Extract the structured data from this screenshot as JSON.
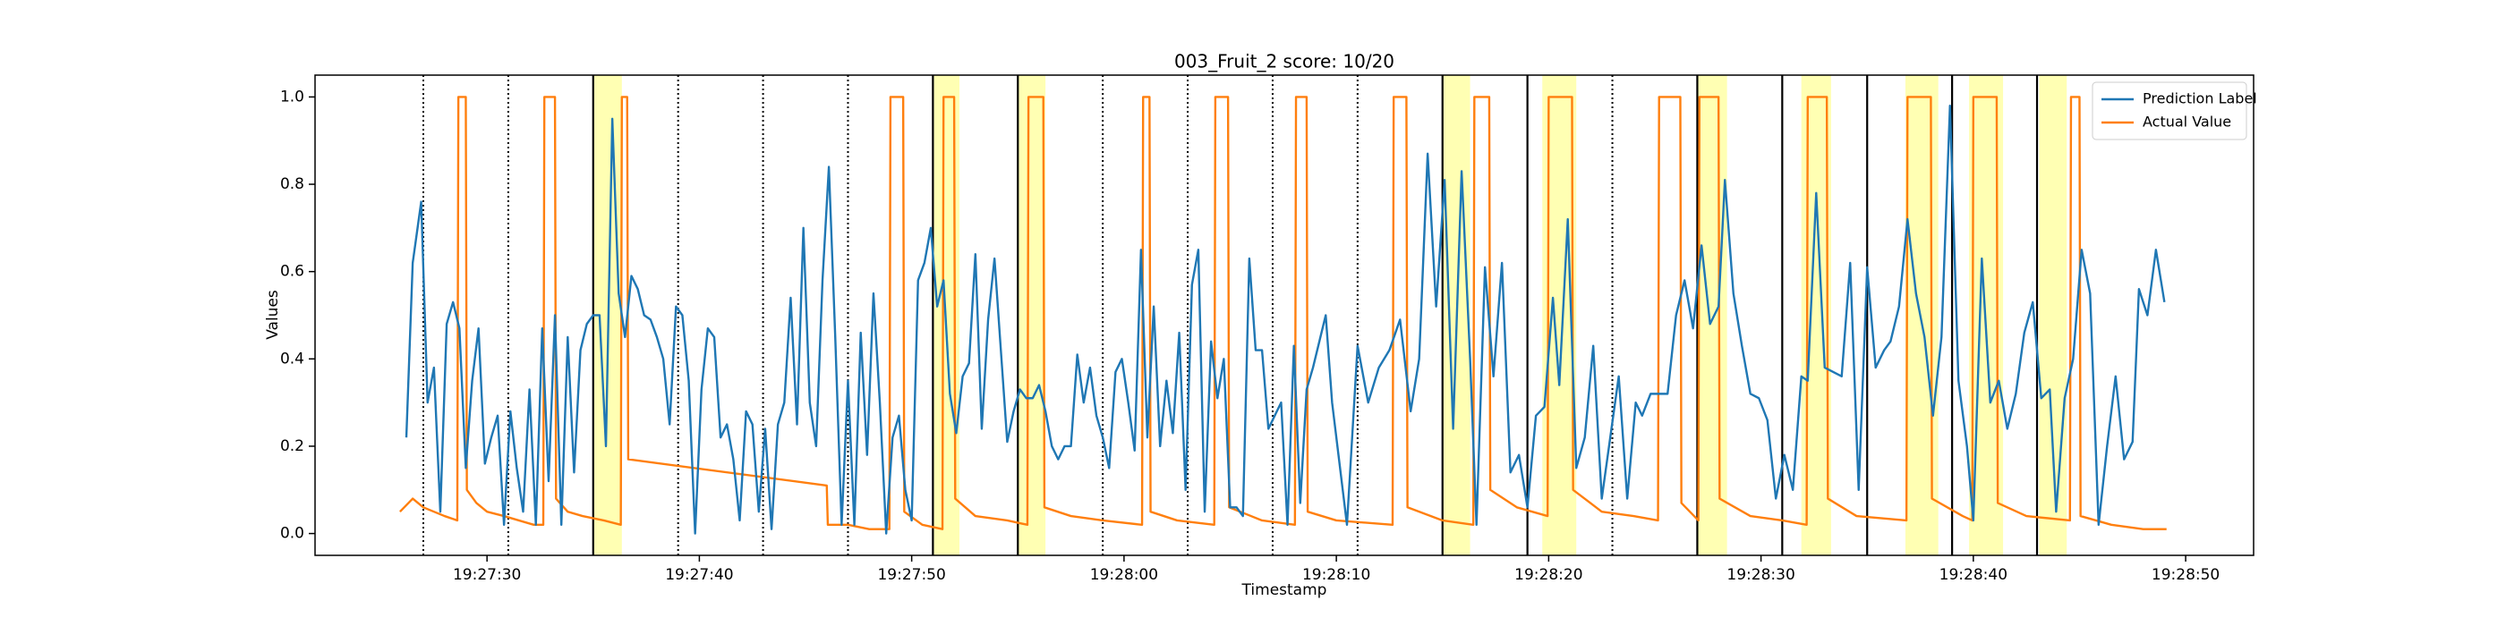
{
  "chart_data": {
    "type": "line",
    "title": "003_Fruit_2 score: 10/20",
    "x_label": "Timestamp",
    "y_label": "Values",
    "xlim": [
      "19:27:21.9",
      "19:28:53.2"
    ],
    "xticks": [
      "19:27:30",
      "19:27:40",
      "19:27:50",
      "19:28:00",
      "19:28:10",
      "19:28:20",
      "19:28:30",
      "19:28:40",
      "19:28:50"
    ],
    "ylim": [
      -0.05,
      1.05
    ],
    "yticks": [
      {
        "value": 0,
        "label": "0.0"
      },
      {
        "value": 0.2,
        "label": "0.2"
      },
      {
        "value": 0.4,
        "label": "0.4"
      },
      {
        "value": 0.6,
        "label": "0.6"
      },
      {
        "value": 0.8,
        "label": "0.8"
      },
      {
        "value": 1,
        "label": "1.0"
      }
    ],
    "legend": "upper right",
    "vline_color": "#000000",
    "span_color": "#ffff99",
    "vlines": [
      {
        "x": "19:27:27.0",
        "style": "dotted"
      },
      {
        "x": "19:27:31.0",
        "style": "dotted"
      },
      {
        "x": "19:27:35.0",
        "style": "solid"
      },
      {
        "x": "19:27:39.0",
        "style": "dotted"
      },
      {
        "x": "19:27:43.0",
        "style": "dotted"
      },
      {
        "x": "19:27:47.0",
        "style": "dotted"
      },
      {
        "x": "19:27:51.0",
        "style": "solid"
      },
      {
        "x": "19:27:55.0",
        "style": "solid"
      },
      {
        "x": "19:27:59.0",
        "style": "dotted"
      },
      {
        "x": "19:28:03.0",
        "style": "dotted"
      },
      {
        "x": "19:28:07.0",
        "style": "dotted"
      },
      {
        "x": "19:28:11.0",
        "style": "dotted"
      },
      {
        "x": "19:28:15.0",
        "style": "solid"
      },
      {
        "x": "19:28:19.0",
        "style": "solid"
      },
      {
        "x": "19:28:23.0",
        "style": "dotted"
      },
      {
        "x": "19:28:27.0",
        "style": "solid"
      },
      {
        "x": "19:28:31.0",
        "style": "solid"
      },
      {
        "x": "19:28:35.0",
        "style": "solid"
      },
      {
        "x": "19:28:39.0",
        "style": "solid"
      },
      {
        "x": "19:28:43.0",
        "style": "solid"
      }
    ],
    "spans": [
      {
        "x": [
          "19:27:35.0",
          "19:27:36.35"
        ]
      },
      {
        "x": [
          "19:27:51.05",
          "19:27:52.25"
        ]
      },
      {
        "x": [
          "19:27:55.0",
          "19:27:56.3"
        ]
      },
      {
        "x": [
          "19:28:15.0",
          "19:28:16.3"
        ]
      },
      {
        "x": [
          "19:28:19.7",
          "19:28:21.3"
        ]
      },
      {
        "x": [
          "19:28:27.0",
          "19:28:28.4"
        ]
      },
      {
        "x": [
          "19:28:31.9",
          "19:28:33.3"
        ]
      },
      {
        "x": [
          "19:28:36.8",
          "19:28:38.35"
        ]
      },
      {
        "x": [
          "19:28:39.8",
          "19:28:41.4"
        ]
      },
      {
        "x": [
          "19:28:43.1",
          "19:28:44.4"
        ]
      }
    ],
    "series": [
      {
        "name": "Prediction Label",
        "color": "#1f77b4",
        "x": [
          "19:27:26.2",
          "19:27:26.5",
          "19:27:26.9",
          "19:27:27.2",
          "19:27:27.5",
          "19:27:27.8",
          "19:27:28.1",
          "19:27:28.4",
          "19:27:28.7",
          "19:27:29.0",
          "19:27:29.3",
          "19:27:29.6",
          "19:27:29.9",
          "19:27:30.2",
          "19:27:30.5",
          "19:27:30.8",
          "19:27:31.1",
          "19:27:31.4",
          "19:27:31.7",
          "19:27:32.0",
          "19:27:32.3",
          "19:27:32.6",
          "19:27:32.9",
          "19:27:33.2",
          "19:27:33.5",
          "19:27:33.8",
          "19:27:34.1",
          "19:27:34.4",
          "19:27:34.7",
          "19:27:35.0",
          "19:27:35.3",
          "19:27:35.6",
          "19:27:35.9",
          "19:27:36.2",
          "19:27:36.5",
          "19:27:36.8",
          "19:27:37.1",
          "19:27:37.4",
          "19:27:37.7",
          "19:27:38.0",
          "19:27:38.3",
          "19:27:38.6",
          "19:27:38.9",
          "19:27:39.2",
          "19:27:39.5",
          "19:27:39.8",
          "19:27:40.1",
          "19:27:40.4",
          "19:27:40.7",
          "19:27:41.0",
          "19:27:41.3",
          "19:27:41.6",
          "19:27:41.9",
          "19:27:42.2",
          "19:27:42.5",
          "19:27:42.8",
          "19:27:43.1",
          "19:27:43.4",
          "19:27:43.7",
          "19:27:44.0",
          "19:27:44.3",
          "19:27:44.6",
          "19:27:44.9",
          "19:27:45.2",
          "19:27:45.5",
          "19:27:45.8",
          "19:27:46.1",
          "19:27:46.4",
          "19:27:46.7",
          "19:27:47.0",
          "19:27:47.3",
          "19:27:47.6",
          "19:27:47.9",
          "19:27:48.2",
          "19:27:48.5",
          "19:27:48.8",
          "19:27:49.1",
          "19:27:49.4",
          "19:27:49.7",
          "19:27:50.0",
          "19:27:50.3",
          "19:27:50.6",
          "19:27:50.9",
          "19:27:51.2",
          "19:27:51.5",
          "19:27:51.8",
          "19:27:52.1",
          "19:27:52.4",
          "19:27:52.7",
          "19:27:53.0",
          "19:27:53.3",
          "19:27:53.6",
          "19:27:53.9",
          "19:27:54.2",
          "19:27:54.5",
          "19:27:54.8",
          "19:27:55.1",
          "19:27:55.4",
          "19:27:55.7",
          "19:27:56.0",
          "19:27:56.3",
          "19:27:56.6",
          "19:27:56.9",
          "19:27:57.2",
          "19:27:57.5",
          "19:27:57.8",
          "19:27:58.1",
          "19:27:58.4",
          "19:27:58.7",
          "19:27:59.0",
          "19:27:59.3",
          "19:27:59.6",
          "19:27:59.9",
          "19:28:00.2",
          "19:28:00.5",
          "19:28:00.8",
          "19:28:01.1",
          "19:28:01.4",
          "19:28:01.7",
          "19:28:02.0",
          "19:28:02.3",
          "19:28:02.6",
          "19:28:02.9",
          "19:28:03.2",
          "19:28:03.5",
          "19:28:03.8",
          "19:28:04.1",
          "19:28:04.4",
          "19:28:04.7",
          "19:28:05.0",
          "19:28:05.3",
          "19:28:05.6",
          "19:28:05.9",
          "19:28:06.2",
          "19:28:06.5",
          "19:28:06.8",
          "19:28:07.1",
          "19:28:07.4",
          "19:28:07.7",
          "19:28:08.0",
          "19:28:08.3",
          "19:28:08.6",
          "19:28:08.9",
          "19:28:09.2",
          "19:28:09.5",
          "19:28:09.8",
          "19:28:10.5",
          "19:28:11.0",
          "19:28:11.5",
          "19:28:12.0",
          "19:28:12.5",
          "19:28:13.0",
          "19:28:13.5",
          "19:28:13.9",
          "19:28:14.3",
          "19:28:14.7",
          "19:28:15.1",
          "19:28:15.5",
          "19:28:15.9",
          "19:28:16.3",
          "19:28:16.6",
          "19:28:17.0",
          "19:28:17.4",
          "19:28:17.8",
          "19:28:18.2",
          "19:28:18.6",
          "19:28:19.0",
          "19:28:19.4",
          "19:28:19.8",
          "19:28:20.2",
          "19:28:20.5",
          "19:28:20.9",
          "19:28:21.3",
          "19:28:21.7",
          "19:28:22.1",
          "19:28:22.5",
          "19:28:22.9",
          "19:28:23.3",
          "19:28:23.7",
          "19:28:24.1",
          "19:28:24.4",
          "19:28:24.8",
          "19:28:25.2",
          "19:28:25.6",
          "19:28:26.0",
          "19:28:26.4",
          "19:28:26.8",
          "19:28:27.2",
          "19:28:27.6",
          "19:28:28.0",
          "19:28:28.3",
          "19:28:28.7",
          "19:28:29.1",
          "19:28:29.5",
          "19:28:29.9",
          "19:28:30.3",
          "19:28:30.7",
          "19:28:31.1",
          "19:28:31.5",
          "19:28:31.9",
          "19:28:32.2",
          "19:28:32.6",
          "19:28:33.0",
          "19:28:33.4",
          "19:28:33.8",
          "19:28:34.2",
          "19:28:34.6",
          "19:28:35.0",
          "19:28:35.4",
          "19:28:35.8",
          "19:28:36.1",
          "19:28:36.5",
          "19:28:36.9",
          "19:28:37.3",
          "19:28:37.7",
          "19:28:38.1",
          "19:28:38.5",
          "19:28:38.9",
          "19:28:39.3",
          "19:28:39.7",
          "19:28:40.0",
          "19:28:40.4",
          "19:28:40.8",
          "19:28:41.2",
          "19:28:41.6",
          "19:28:42.0",
          "19:28:42.4",
          "19:28:42.8",
          "19:28:43.2",
          "19:28:43.6",
          "19:28:43.9",
          "19:28:44.3",
          "19:28:44.7",
          "19:28:45.1",
          "19:28:45.5",
          "19:28:45.9",
          "19:28:46.3",
          "19:28:46.7",
          "19:28:47.1",
          "19:28:47.5",
          "19:28:47.8",
          "19:28:48.2",
          "19:28:48.6",
          "19:28:49.0"
        ],
        "values": [
          0.22,
          0.62,
          0.76,
          0.3,
          0.38,
          0.05,
          0.48,
          0.53,
          0.47,
          0.15,
          0.35,
          0.47,
          0.16,
          0.22,
          0.27,
          0.02,
          0.28,
          0.15,
          0.05,
          0.33,
          0.02,
          0.47,
          0.12,
          0.5,
          0.02,
          0.45,
          0.14,
          0.42,
          0.48,
          0.5,
          0.5,
          0.2,
          0.95,
          0.55,
          0.45,
          0.59,
          0.56,
          0.5,
          0.49,
          0.45,
          0.4,
          0.25,
          0.52,
          0.5,
          0.35,
          0,
          0.33,
          0.47,
          0.45,
          0.22,
          0.25,
          0.17,
          0.03,
          0.28,
          0.25,
          0.05,
          0.24,
          0.01,
          0.25,
          0.3,
          0.54,
          0.25,
          0.7,
          0.3,
          0.2,
          0.58,
          0.84,
          0.45,
          0.02,
          0.35,
          0.02,
          0.46,
          0.18,
          0.55,
          0.3,
          0,
          0.22,
          0.27,
          0.1,
          0.03,
          0.58,
          0.62,
          0.7,
          0.52,
          0.58,
          0.32,
          0.23,
          0.36,
          0.39,
          0.64,
          0.24,
          0.49,
          0.63,
          0.42,
          0.21,
          0.28,
          0.33,
          0.31,
          0.31,
          0.34,
          0.28,
          0.2,
          0.17,
          0.2,
          0.2,
          0.41,
          0.3,
          0.38,
          0.27,
          0.22,
          0.15,
          0.37,
          0.4,
          0.3,
          0.19,
          0.65,
          0.22,
          0.52,
          0.2,
          0.35,
          0.23,
          0.46,
          0.1,
          0.57,
          0.65,
          0.05,
          0.44,
          0.31,
          0.4,
          0.06,
          0.06,
          0.04,
          0.63,
          0.42,
          0.42,
          0.24,
          0.27,
          0.3,
          0.02,
          0.43,
          0.07,
          0.33,
          0.38,
          0.44,
          0.5,
          0.3,
          0.02,
          0.43,
          0.3,
          0.38,
          0.42,
          0.49,
          0.28,
          0.4,
          0.87,
          0.52,
          0.81,
          0.24,
          0.83,
          0.4,
          0.02,
          0.61,
          0.36,
          0.62,
          0.14,
          0.18,
          0.06,
          0.27,
          0.29,
          0.54,
          0.34,
          0.72,
          0.15,
          0.22,
          0.43,
          0.08,
          0.22,
          0.36,
          0.08,
          0.3,
          0.27,
          0.32,
          0.32,
          0.32,
          0.5,
          0.58,
          0.47,
          0.66,
          0.48,
          0.52,
          0.81,
          0.55,
          0.43,
          0.32,
          0.31,
          0.26,
          0.08,
          0.18,
          0.1,
          0.36,
          0.35,
          0.78,
          0.38,
          0.37,
          0.36,
          0.62,
          0.1,
          0.61,
          0.38,
          0.42,
          0.44,
          0.52,
          0.72,
          0.55,
          0.45,
          0.27,
          0.45,
          0.98,
          0.35,
          0.2,
          0.03,
          0.63,
          0.3,
          0.35,
          0.24,
          0.32,
          0.46,
          0.53,
          0.31,
          0.33,
          0.05,
          0.31,
          0.4,
          0.65,
          0.55,
          0.02,
          0.2,
          0.36,
          0.17,
          0.21,
          0.56,
          0.5,
          0.65,
          0.53
        ]
      },
      {
        "name": "Actual Value",
        "color": "#ff7f0e",
        "x": [
          "19:27:25.9",
          "19:27:26.5",
          "19:27:27.0",
          "19:27:27.5",
          "19:27:28.0",
          "19:27:28.6",
          "19:27:28.65",
          "19:27:29.0",
          "19:27:29.05",
          "19:27:29.5",
          "19:27:30.0",
          "19:27:30.8",
          "19:27:31.5",
          "19:27:32.2",
          "19:27:32.65",
          "19:27:32.7",
          "19:27:33.2",
          "19:27:33.25",
          "19:27:33.8",
          "19:27:34.5",
          "19:27:35.5",
          "19:27:36.3",
          "19:27:36.35",
          "19:27:36.6",
          "19:27:36.65",
          "19:27:46.0",
          "19:27:46.05",
          "19:27:47.0",
          "19:27:48.0",
          "19:27:48.95",
          "19:27:49.0",
          "19:27:49.6",
          "19:27:49.65",
          "19:27:50.5",
          "19:27:51.45",
          "19:27:51.5",
          "19:27:52.0",
          "19:27:52.05",
          "19:27:53.0",
          "19:27:54.5",
          "19:27:55.45",
          "19:27:55.5",
          "19:27:56.2",
          "19:27:56.25",
          "19:27:57.5",
          "19:27:59.0",
          "19:28:00.85",
          "19:28:00.9",
          "19:28:01.2",
          "19:28:01.25",
          "19:28:02.5",
          "19:28:04.25",
          "19:28:04.3",
          "19:28:04.9",
          "19:28:04.95",
          "19:28:06.5",
          "19:28:08.05",
          "19:28:08.1",
          "19:28:08.6",
          "19:28:08.65",
          "19:28:10.0",
          "19:28:12.65",
          "19:28:12.7",
          "19:28:13.3",
          "19:28:13.35",
          "19:28:15.0",
          "19:28:16.45",
          "19:28:16.5",
          "19:28:17.2",
          "19:28:17.25",
          "19:28:18.5",
          "19:28:19.95",
          "19:28:20.0",
          "19:28:21.1",
          "19:28:21.15",
          "19:28:22.5",
          "19:28:24.0",
          "19:28:25.15",
          "19:28:25.2",
          "19:28:26.2",
          "19:28:26.25",
          "19:28:27.05",
          "19:28:27.1",
          "19:28:28.0",
          "19:28:28.05",
          "19:28:29.5",
          "19:28:31.0",
          "19:28:32.15",
          "19:28:32.2",
          "19:28:33.1",
          "19:28:33.15",
          "19:28:34.5",
          "19:28:36.85",
          "19:28:36.9",
          "19:28:38.0",
          "19:28:38.05",
          "19:28:39.5",
          "19:28:39.95",
          "19:28:40.0",
          "19:28:41.1",
          "19:28:41.15",
          "19:28:42.5",
          "19:28:44.55",
          "19:28:44.6",
          "19:28:45.0",
          "19:28:45.05",
          "19:28:46.5",
          "19:28:48.0",
          "19:28:49.1"
        ],
        "values": [
          0.05,
          0.08,
          0.06,
          0.05,
          0.04,
          0.03,
          1,
          1,
          0.1,
          0.07,
          0.05,
          0.04,
          0.03,
          0.02,
          0.02,
          1,
          1,
          0.08,
          0.05,
          0.04,
          0.03,
          0.02,
          1,
          1,
          0.17,
          0.11,
          0.02,
          0.02,
          0.01,
          0.01,
          1,
          1,
          0.05,
          0.02,
          0.01,
          1,
          1,
          0.08,
          0.04,
          0.03,
          0.02,
          1,
          1,
          0.06,
          0.04,
          0.03,
          0.02,
          1,
          1,
          0.05,
          0.03,
          0.02,
          1,
          1,
          0.06,
          0.03,
          0.02,
          1,
          1,
          0.05,
          0.03,
          0.02,
          1,
          1,
          0.06,
          0.03,
          0.02,
          1,
          1,
          0.1,
          0.06,
          0.04,
          1,
          1,
          0.1,
          0.05,
          0.04,
          0.03,
          1,
          1,
          0.07,
          0.03,
          1,
          1,
          0.08,
          0.04,
          0.03,
          0.02,
          1,
          1,
          0.08,
          0.04,
          0.03,
          1,
          1,
          0.08,
          0.04,
          0.03,
          1,
          1,
          0.07,
          0.04,
          0.03,
          1,
          1,
          0.04,
          0.02,
          0.01,
          0.01
        ]
      }
    ]
  }
}
